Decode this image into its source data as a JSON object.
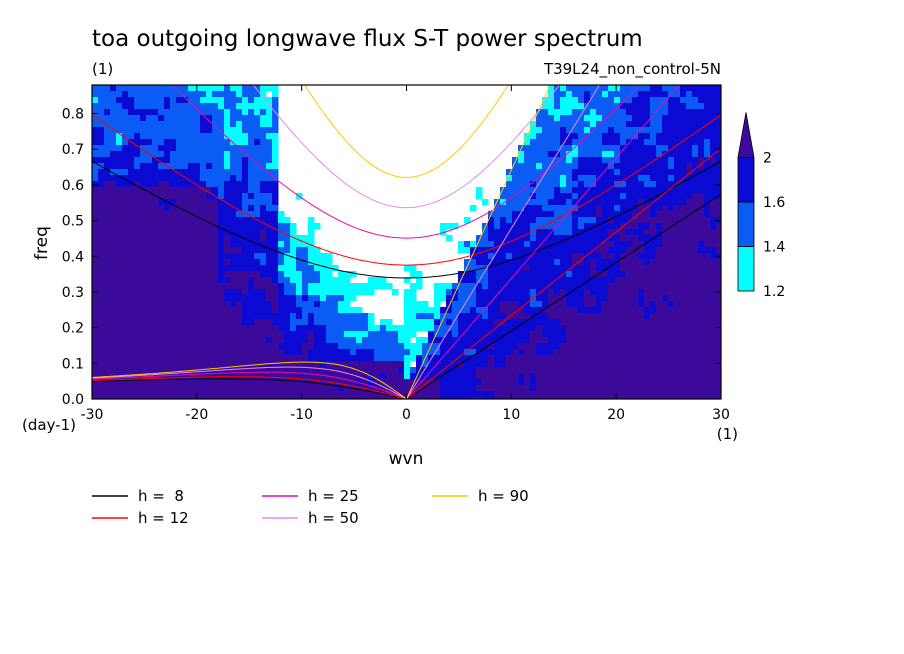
{
  "chart_data": {
    "type": "heatmap",
    "title": "toa outgoing longwave flux S-T power spectrum",
    "subtitle_left": "(1)",
    "subtitle_right": "T39L24_non_control-5N",
    "xlabel": "wvn",
    "ylabel": "freq",
    "x_unit_label": "(1)",
    "y_unit_label": "(day-1)",
    "xlim": [
      -30,
      30
    ],
    "ylim": [
      0,
      0.88
    ],
    "x_ticks": [
      -30,
      -20,
      -10,
      0,
      10,
      20,
      30
    ],
    "x_tick_labels": [
      "-30",
      "-20",
      "-10",
      "0",
      "10",
      "20",
      "30"
    ],
    "y_ticks": [
      0,
      0.1,
      0.2,
      0.3,
      0.4,
      0.5,
      0.6,
      0.7,
      0.8
    ],
    "y_tick_labels": [
      "0.0",
      "0.1",
      "0.2",
      "0.3",
      "0.4",
      "0.5",
      "0.6",
      "0.7",
      "0.8"
    ],
    "colorbar": {
      "levels": [
        1.2,
        1.4,
        1.6,
        2
      ],
      "labels": [
        "1.2",
        "1.4",
        "1.6",
        "2"
      ],
      "colors": [
        "#00ffff",
        "#0a5cf5",
        "#0a0ad2",
        "#3c0a9b"
      ],
      "extend": "max"
    },
    "dispersion_curves": [
      {
        "label": "h =  8",
        "h": 8,
        "color": "#000000"
      },
      {
        "label": "h = 12",
        "h": 12,
        "color": "#ff0000"
      },
      {
        "label": "h = 25",
        "h": 25,
        "color": "#e60ab4"
      },
      {
        "label": "h = 50",
        "h": 50,
        "color": "#e68ce6"
      },
      {
        "label": "h = 90",
        "h": 90,
        "color": "#ffc800"
      }
    ],
    "grid": false
  }
}
